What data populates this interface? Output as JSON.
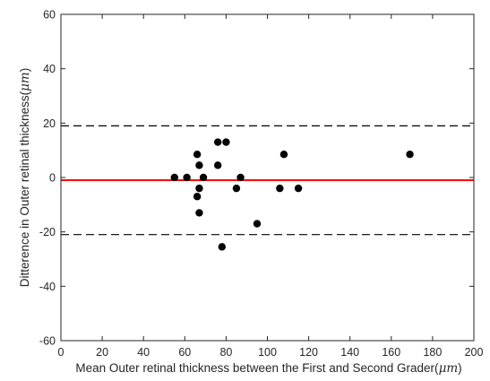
{
  "chart_data": {
    "type": "scatter",
    "title": "",
    "xlabel": "Mean Outer retinal thickness between the First and Second Grader(",
    "xlabel_unit": "μm",
    "xlabel_close": ")",
    "ylabel": "Ditterence in Outer retinal thickness(",
    "ylabel_unit": "μm",
    "ylabel_close": ")",
    "xlim": [
      0,
      200
    ],
    "ylim": [
      -60,
      60
    ],
    "xticks": [
      0,
      20,
      40,
      60,
      80,
      100,
      120,
      140,
      160,
      180,
      200
    ],
    "yticks": [
      -60,
      -40,
      -20,
      0,
      20,
      40,
      60
    ],
    "grid": false,
    "points": [
      {
        "x": 55,
        "y": 0
      },
      {
        "x": 61,
        "y": 0
      },
      {
        "x": 66,
        "y": 8.5
      },
      {
        "x": 66,
        "y": -7
      },
      {
        "x": 67,
        "y": 4.5
      },
      {
        "x": 67,
        "y": -4
      },
      {
        "x": 67,
        "y": -13
      },
      {
        "x": 69,
        "y": 0
      },
      {
        "x": 76,
        "y": 13
      },
      {
        "x": 76,
        "y": 4.5
      },
      {
        "x": 78,
        "y": -25.5
      },
      {
        "x": 80,
        "y": 13
      },
      {
        "x": 85,
        "y": -4
      },
      {
        "x": 87,
        "y": 0
      },
      {
        "x": 95,
        "y": -17
      },
      {
        "x": 106,
        "y": -4
      },
      {
        "x": 108,
        "y": 8.5
      },
      {
        "x": 115,
        "y": -4
      },
      {
        "x": 169,
        "y": 8.5
      }
    ],
    "lines": [
      {
        "y": -1,
        "style": "solid",
        "color": "#ff0000"
      },
      {
        "y": 19,
        "style": "dashed",
        "color": "#000000"
      },
      {
        "y": -21,
        "style": "dashed",
        "color": "#000000"
      }
    ]
  }
}
